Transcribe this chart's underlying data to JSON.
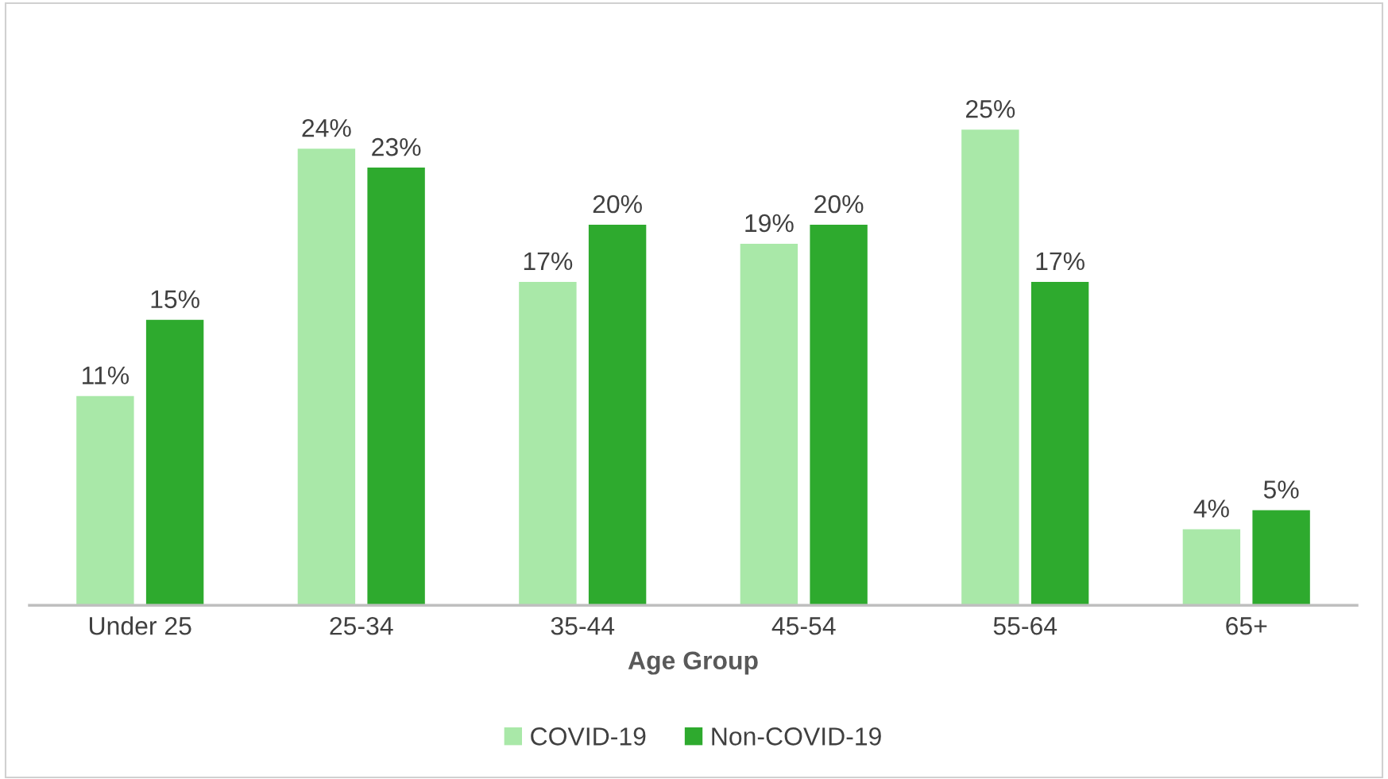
{
  "chart_data": {
    "type": "bar",
    "xlabel": "Age Group",
    "categories": [
      "Under 25",
      "25-34",
      "35-44",
      "45-54",
      "55-64",
      "65+"
    ],
    "series": [
      {
        "name": "COVID-19",
        "color": "#a9e8a8",
        "values": [
          11,
          24,
          17,
          19,
          25,
          4
        ],
        "value_labels": [
          "11%",
          "24%",
          "17%",
          "19%",
          "25%",
          "4%"
        ]
      },
      {
        "name": "Non-COVID-19",
        "color": "#2eaa2e",
        "values": [
          15,
          23,
          20,
          20,
          17,
          5
        ],
        "value_labels": [
          "15%",
          "23%",
          "20%",
          "20%",
          "17%",
          "5%"
        ]
      }
    ],
    "legend": "bottom",
    "grid": false
  }
}
